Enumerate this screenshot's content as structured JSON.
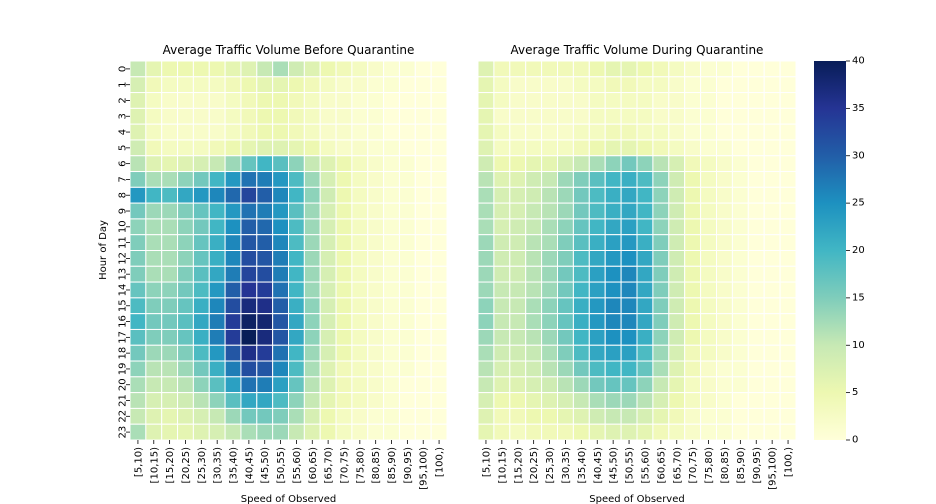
{
  "chart_data": [
    {
      "type": "heatmap",
      "title": "Average Traffic Volume Before Quarantine",
      "xlabel": "Speed of Observed",
      "ylabel": "Hour of Day",
      "x_categories": [
        "[5,10)",
        "[10,15)",
        "[15,20)",
        "[20,25)",
        "[25,30)",
        "[30,35)",
        "[35,40)",
        "[40,45)",
        "[45,50)",
        "[50,55)",
        "[55,60)",
        "[60,65)",
        "[65,70)",
        "[70,75)",
        "[75,80)",
        "[80,85)",
        "[85,90)",
        "[90,95)",
        "[95,100)",
        "[100,)"
      ],
      "y_categories": [
        "0",
        "1",
        "2",
        "3",
        "4",
        "5",
        "6",
        "7",
        "8",
        "9",
        "10",
        "11",
        "12",
        "13",
        "14",
        "15",
        "16",
        "17",
        "18",
        "19",
        "20",
        "21",
        "22",
        "23"
      ],
      "values": [
        [
          10,
          6,
          5,
          5,
          5,
          5,
          6,
          7,
          10,
          12,
          9,
          7,
          5,
          4,
          3,
          2,
          1,
          1,
          0,
          0
        ],
        [
          8,
          4,
          3,
          3,
          3,
          3,
          4,
          5,
          6,
          6,
          5,
          4,
          3,
          2,
          2,
          1,
          1,
          0,
          0,
          0
        ],
        [
          7,
          3,
          2,
          2,
          2,
          2,
          3,
          4,
          5,
          5,
          4,
          3,
          2,
          2,
          1,
          1,
          0,
          0,
          0,
          0
        ],
        [
          7,
          3,
          2,
          2,
          2,
          2,
          3,
          4,
          5,
          5,
          4,
          3,
          2,
          2,
          1,
          1,
          0,
          0,
          0,
          0
        ],
        [
          7,
          3,
          2,
          2,
          2,
          2,
          3,
          4,
          5,
          5,
          4,
          3,
          2,
          2,
          1,
          1,
          0,
          0,
          0,
          0
        ],
        [
          9,
          4,
          3,
          3,
          3,
          4,
          5,
          6,
          7,
          7,
          6,
          5,
          3,
          2,
          2,
          1,
          1,
          0,
          0,
          0
        ],
        [
          11,
          7,
          6,
          7,
          8,
          10,
          13,
          17,
          20,
          18,
          14,
          10,
          7,
          5,
          3,
          2,
          1,
          1,
          0,
          0
        ],
        [
          15,
          12,
          12,
          14,
          16,
          20,
          24,
          28,
          27,
          24,
          19,
          13,
          8,
          5,
          3,
          2,
          1,
          1,
          0,
          0
        ],
        [
          24,
          20,
          19,
          22,
          24,
          26,
          29,
          33,
          30,
          26,
          20,
          14,
          9,
          5,
          3,
          2,
          1,
          1,
          0,
          0
        ],
        [
          16,
          13,
          13,
          15,
          17,
          20,
          24,
          28,
          27,
          24,
          18,
          13,
          8,
          5,
          3,
          2,
          1,
          1,
          0,
          0
        ],
        [
          14,
          12,
          12,
          14,
          16,
          20,
          25,
          30,
          29,
          25,
          19,
          13,
          8,
          5,
          3,
          2,
          1,
          1,
          0,
          0
        ],
        [
          15,
          12,
          12,
          14,
          17,
          21,
          26,
          31,
          30,
          26,
          19,
          13,
          8,
          5,
          3,
          2,
          1,
          1,
          0,
          0
        ],
        [
          15,
          12,
          12,
          14,
          17,
          21,
          26,
          32,
          31,
          27,
          20,
          13,
          8,
          5,
          3,
          2,
          1,
          1,
          0,
          0
        ],
        [
          15,
          12,
          12,
          15,
          18,
          22,
          27,
          33,
          32,
          27,
          20,
          13,
          8,
          5,
          3,
          2,
          1,
          1,
          0,
          0
        ],
        [
          17,
          14,
          14,
          16,
          19,
          24,
          30,
          35,
          34,
          28,
          20,
          13,
          8,
          5,
          3,
          2,
          1,
          1,
          0,
          0
        ],
        [
          19,
          15,
          15,
          17,
          21,
          26,
          32,
          37,
          36,
          30,
          21,
          14,
          8,
          5,
          3,
          2,
          1,
          1,
          0,
          0
        ],
        [
          20,
          16,
          16,
          18,
          22,
          27,
          34,
          39,
          38,
          31,
          22,
          14,
          8,
          5,
          3,
          2,
          1,
          1,
          0,
          0
        ],
        [
          18,
          15,
          15,
          17,
          21,
          27,
          34,
          40,
          37,
          31,
          22,
          14,
          8,
          5,
          3,
          2,
          1,
          1,
          0,
          0
        ],
        [
          16,
          13,
          13,
          15,
          19,
          24,
          31,
          36,
          34,
          28,
          20,
          13,
          8,
          5,
          3,
          2,
          1,
          1,
          0,
          0
        ],
        [
          14,
          11,
          11,
          13,
          16,
          21,
          27,
          32,
          31,
          26,
          19,
          12,
          7,
          4,
          3,
          2,
          1,
          1,
          0,
          0
        ],
        [
          12,
          10,
          10,
          11,
          14,
          18,
          23,
          28,
          27,
          23,
          17,
          11,
          7,
          4,
          3,
          2,
          1,
          0,
          0,
          0
        ],
        [
          11,
          8,
          8,
          9,
          11,
          14,
          18,
          22,
          22,
          19,
          14,
          10,
          6,
          4,
          3,
          2,
          1,
          0,
          0,
          0
        ],
        [
          10,
          7,
          6,
          7,
          8,
          10,
          13,
          16,
          16,
          15,
          12,
          8,
          5,
          3,
          2,
          1,
          1,
          0,
          0,
          0
        ],
        [
          12,
          7,
          6,
          6,
          7,
          8,
          10,
          12,
          13,
          13,
          10,
          7,
          5,
          3,
          2,
          1,
          1,
          0,
          0,
          0
        ]
      ],
      "vmin": 0,
      "vmax": 40,
      "colormap": "YlGnBu",
      "grid": false,
      "gridline_color": "#ffffff"
    },
    {
      "type": "heatmap",
      "title": "Average Traffic Volume During Quarantine",
      "xlabel": "Speed of Observed",
      "ylabel": "",
      "x_categories": [
        "[5,10)",
        "[10,15)",
        "[15,20)",
        "[20,25)",
        "[25,30)",
        "[30,35)",
        "[35,40)",
        "[40,45)",
        "[45,50)",
        "[50,55)",
        "[55,60)",
        "[60,65)",
        "[65,70)",
        "[70,75)",
        "[75,80)",
        "[80,85)",
        "[85,90)",
        "[90,95)",
        "[95,100)",
        "[100,)"
      ],
      "y_categories": [
        "0",
        "1",
        "2",
        "3",
        "4",
        "5",
        "6",
        "7",
        "8",
        "9",
        "10",
        "11",
        "12",
        "13",
        "14",
        "15",
        "16",
        "17",
        "18",
        "19",
        "20",
        "21",
        "22",
        "23"
      ],
      "values": [
        [
          7,
          4,
          4,
          4,
          4,
          4,
          4,
          5,
          6,
          6,
          5,
          4,
          3,
          2,
          1,
          1,
          0,
          0,
          0,
          0
        ],
        [
          6,
          3,
          2,
          2,
          2,
          2,
          3,
          3,
          4,
          4,
          3,
          3,
          2,
          1,
          1,
          0,
          0,
          0,
          0,
          0
        ],
        [
          6,
          3,
          2,
          2,
          2,
          2,
          2,
          3,
          3,
          3,
          3,
          2,
          2,
          1,
          1,
          0,
          0,
          0,
          0,
          0
        ],
        [
          6,
          2,
          2,
          2,
          2,
          2,
          2,
          3,
          3,
          3,
          3,
          2,
          2,
          1,
          1,
          0,
          0,
          0,
          0,
          0
        ],
        [
          6,
          3,
          2,
          2,
          2,
          2,
          3,
          3,
          4,
          4,
          3,
          3,
          2,
          1,
          1,
          0,
          0,
          0,
          0,
          0
        ],
        [
          7,
          3,
          3,
          3,
          3,
          3,
          4,
          5,
          6,
          6,
          5,
          4,
          3,
          2,
          1,
          1,
          0,
          0,
          0,
          0
        ],
        [
          9,
          5,
          5,
          6,
          6,
          8,
          10,
          12,
          14,
          16,
          14,
          11,
          8,
          4,
          3,
          2,
          1,
          0,
          0,
          0
        ],
        [
          11,
          7,
          7,
          9,
          10,
          13,
          15,
          18,
          20,
          21,
          19,
          14,
          9,
          5,
          3,
          2,
          1,
          0,
          0,
          0
        ],
        [
          12,
          8,
          8,
          9,
          11,
          13,
          16,
          19,
          21,
          22,
          20,
          14,
          9,
          5,
          3,
          2,
          1,
          0,
          0,
          0
        ],
        [
          12,
          8,
          8,
          10,
          11,
          13,
          16,
          19,
          21,
          22,
          20,
          14,
          9,
          5,
          3,
          2,
          1,
          0,
          0,
          0
        ],
        [
          12,
          8,
          9,
          10,
          12,
          14,
          17,
          20,
          22,
          23,
          20,
          14,
          9,
          5,
          3,
          2,
          1,
          0,
          0,
          0
        ],
        [
          13,
          9,
          9,
          11,
          12,
          15,
          18,
          21,
          23,
          24,
          21,
          15,
          9,
          5,
          3,
          2,
          1,
          0,
          0,
          0
        ],
        [
          13,
          9,
          9,
          11,
          13,
          15,
          19,
          22,
          24,
          25,
          22,
          15,
          9,
          5,
          3,
          2,
          1,
          0,
          0,
          0
        ],
        [
          13,
          9,
          9,
          11,
          13,
          16,
          19,
          23,
          25,
          26,
          22,
          15,
          9,
          5,
          3,
          2,
          1,
          0,
          0,
          0
        ],
        [
          13,
          10,
          10,
          11,
          13,
          16,
          20,
          23,
          25,
          26,
          22,
          15,
          9,
          5,
          3,
          2,
          1,
          0,
          0,
          0
        ],
        [
          14,
          10,
          10,
          12,
          14,
          17,
          21,
          24,
          26,
          26,
          22,
          15,
          9,
          5,
          3,
          2,
          1,
          0,
          0,
          0
        ],
        [
          14,
          10,
          10,
          12,
          14,
          17,
          21,
          24,
          26,
          26,
          22,
          15,
          9,
          5,
          3,
          2,
          1,
          0,
          0,
          0
        ],
        [
          13,
          10,
          10,
          11,
          13,
          16,
          20,
          23,
          25,
          25,
          21,
          14,
          9,
          5,
          3,
          2,
          1,
          0,
          0,
          0
        ],
        [
          12,
          9,
          9,
          10,
          12,
          15,
          19,
          22,
          23,
          23,
          19,
          13,
          8,
          4,
          3,
          2,
          1,
          0,
          0,
          0
        ],
        [
          11,
          8,
          8,
          9,
          11,
          13,
          16,
          19,
          20,
          20,
          17,
          12,
          7,
          4,
          2,
          1,
          1,
          0,
          0,
          0
        ],
        [
          10,
          7,
          7,
          8,
          9,
          11,
          13,
          16,
          17,
          17,
          14,
          10,
          6,
          3,
          2,
          1,
          1,
          0,
          0,
          0
        ],
        [
          8,
          5,
          5,
          6,
          7,
          8,
          10,
          12,
          13,
          13,
          11,
          8,
          5,
          3,
          2,
          1,
          0,
          0,
          0,
          0
        ],
        [
          7,
          4,
          4,
          5,
          5,
          6,
          7,
          9,
          10,
          10,
          8,
          6,
          4,
          2,
          1,
          1,
          0,
          0,
          0,
          0
        ],
        [
          6,
          4,
          3,
          4,
          4,
          4,
          5,
          6,
          7,
          7,
          6,
          4,
          3,
          2,
          1,
          1,
          0,
          0,
          0,
          0
        ]
      ],
      "vmin": 0,
      "vmax": 40,
      "colormap": "YlGnBu",
      "grid": false,
      "gridline_color": "#ffffff"
    }
  ],
  "colorbar": {
    "ticks": [
      0,
      5,
      10,
      15,
      20,
      25,
      30,
      35,
      40
    ],
    "colormap": "YlGnBu",
    "stops": [
      "#ffffd9",
      "#edf8b1",
      "#c7e9b4",
      "#7fcdbb",
      "#41b6c4",
      "#1d91c0",
      "#225ea8",
      "#253494",
      "#081d58"
    ]
  }
}
